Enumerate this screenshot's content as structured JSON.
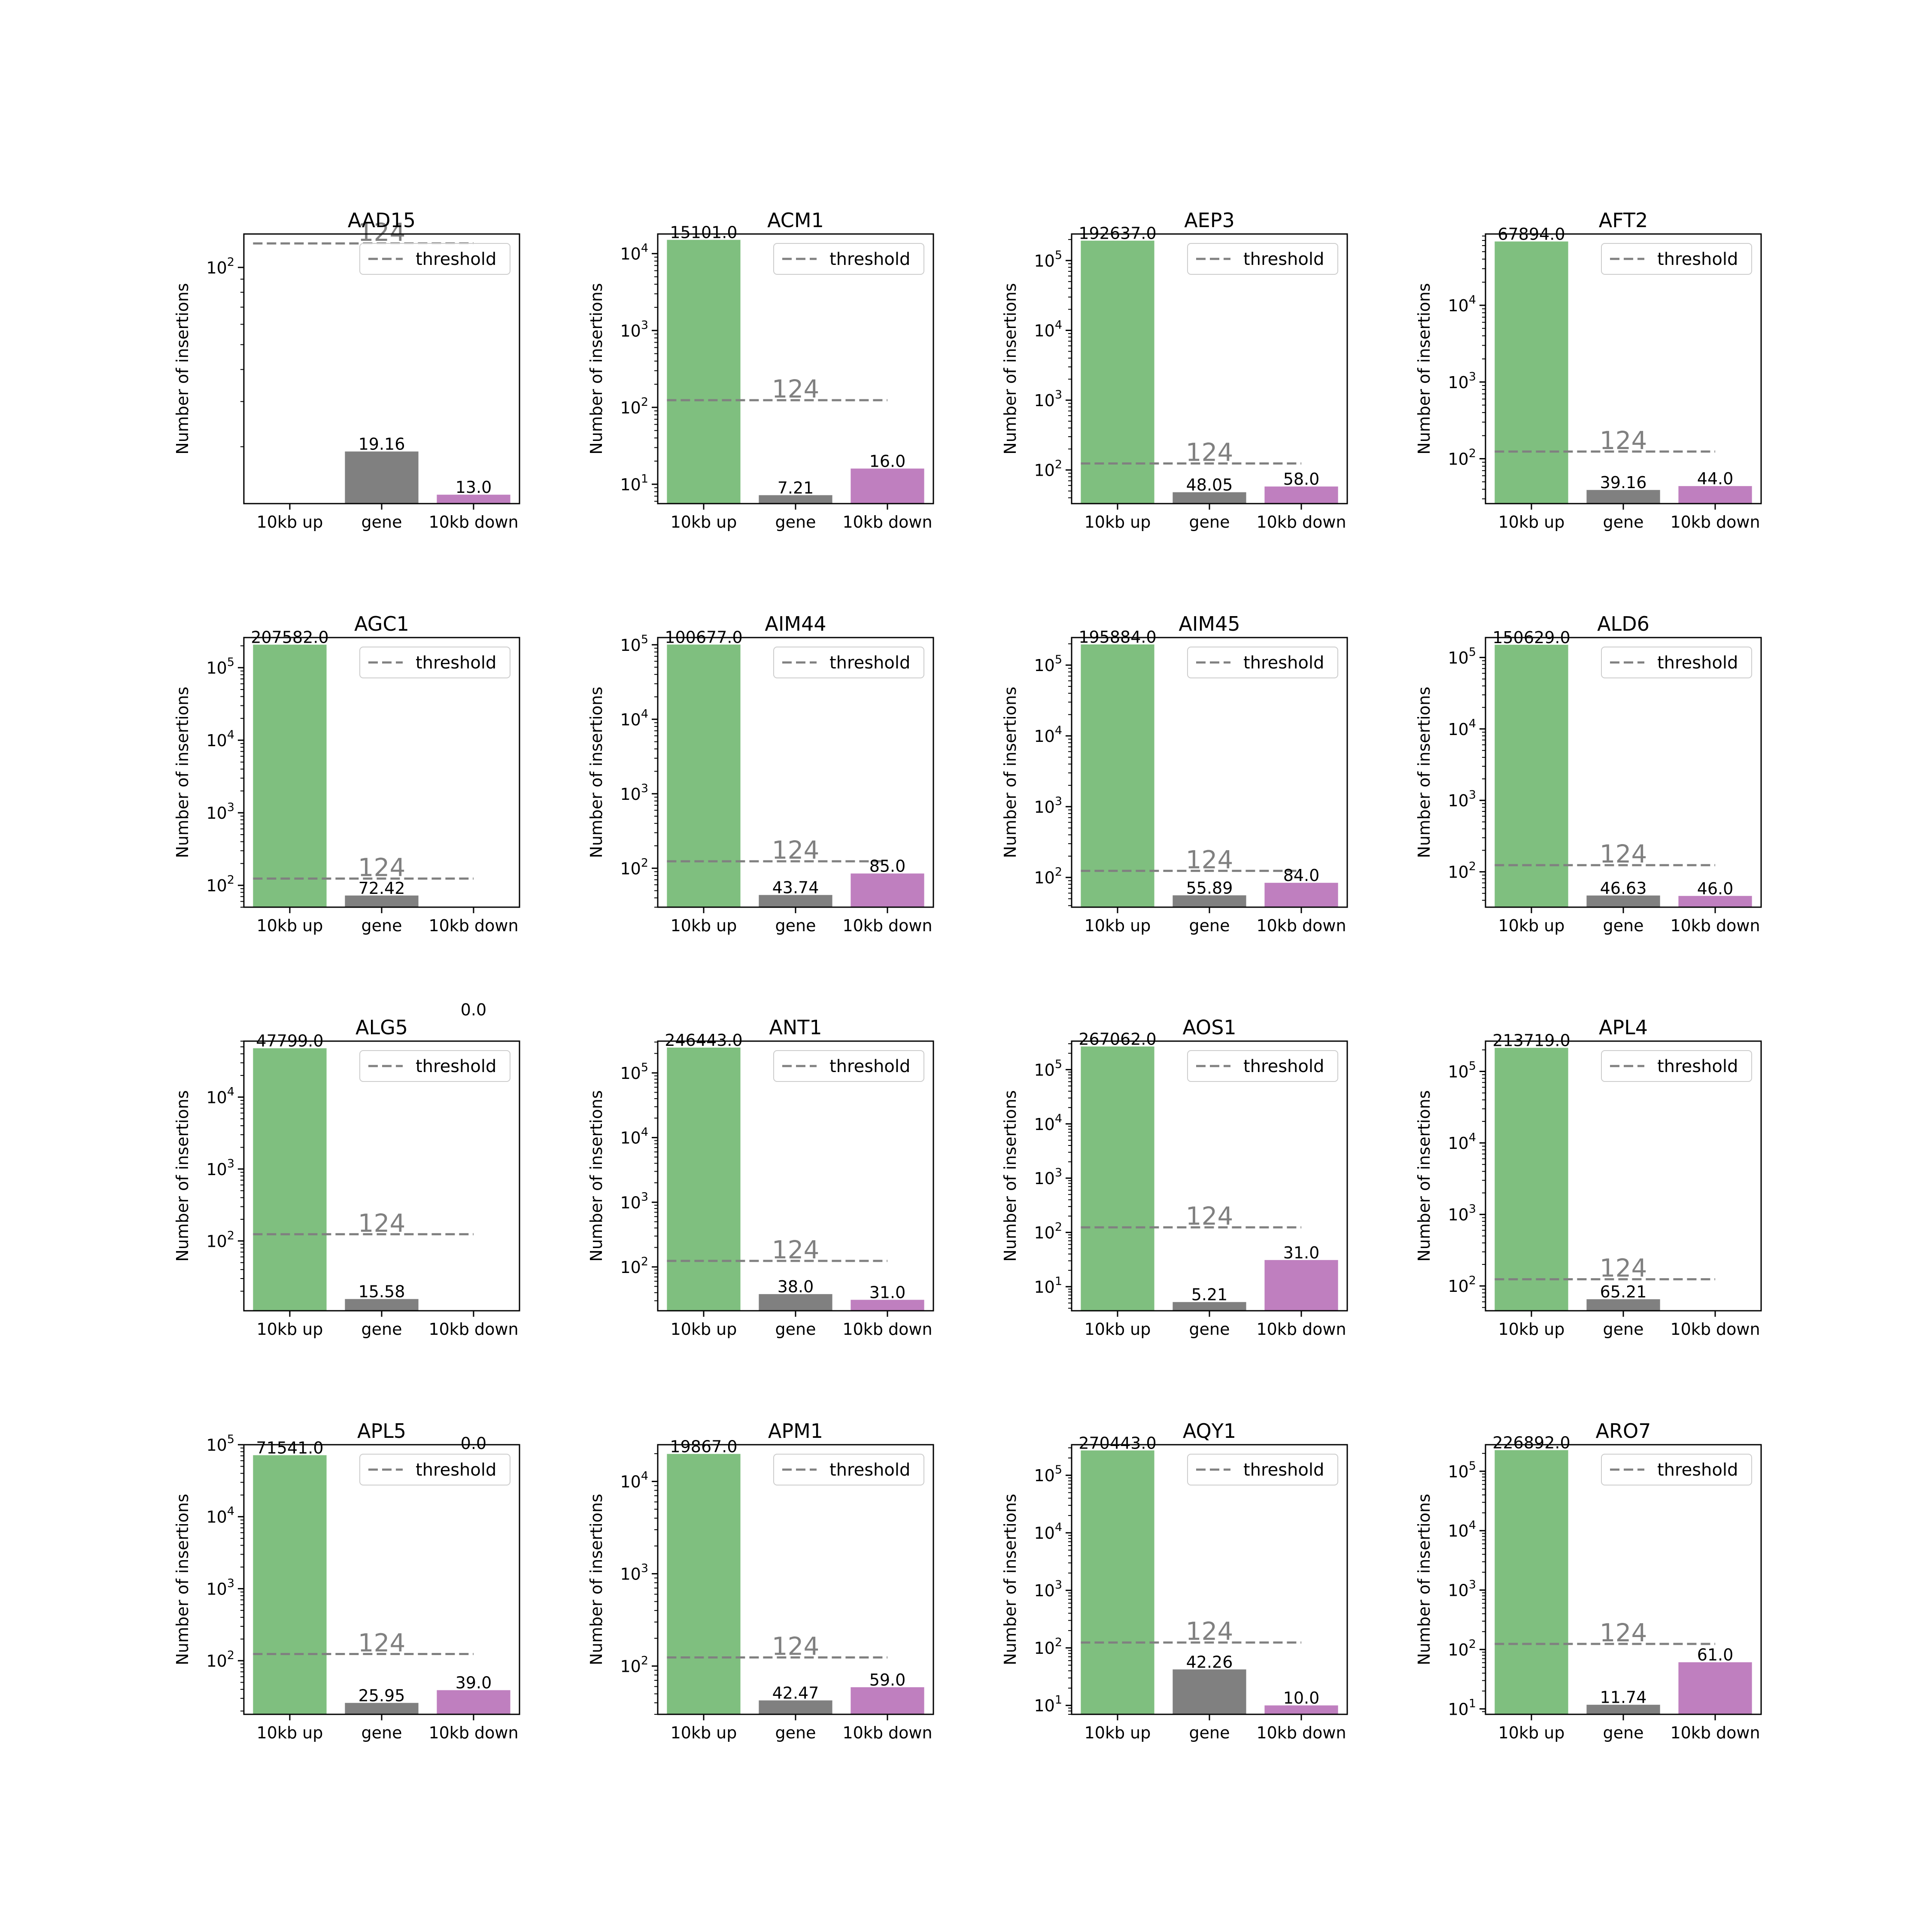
{
  "colors": {
    "up": "#7fbf7f",
    "gene": "#808080",
    "down": "#bf7fbf",
    "threshold": "#808080"
  },
  "chart_data": [
    {
      "type": "bar",
      "title": "AAD15",
      "categories": [
        "10kb up",
        "gene",
        "10kb down"
      ],
      "values": [
        0.0,
        19.16,
        13.0
      ],
      "bar_labels": [
        "",
        "19.16",
        "13.0"
      ],
      "ylabel": "Number of insertions",
      "yscale": "log",
      "ylim": [
        12,
        135
      ],
      "yticks": [
        {
          "base": "10",
          "exp": "2",
          "value": 100
        }
      ],
      "threshold": 124,
      "threshold_label": "124",
      "legend": {
        "entries": [
          "threshold"
        ],
        "position": "upper right"
      }
    },
    {
      "type": "bar",
      "title": "ACM1",
      "categories": [
        "10kb up",
        "gene",
        "10kb down"
      ],
      "values": [
        15101.0,
        7.21,
        16.0
      ],
      "bar_labels": [
        "15101.0",
        "7.21",
        "16.0"
      ],
      "ylabel": "Number of insertions",
      "yscale": "log",
      "ylim": [
        5.6,
        18000
      ],
      "yticks": [
        {
          "base": "10",
          "exp": "1",
          "value": 10
        },
        {
          "base": "10",
          "exp": "2",
          "value": 100
        },
        {
          "base": "10",
          "exp": "3",
          "value": 1000
        },
        {
          "base": "10",
          "exp": "4",
          "value": 10000
        }
      ],
      "threshold": 124,
      "threshold_label": "124",
      "legend": {
        "entries": [
          "threshold"
        ],
        "position": "upper right"
      }
    },
    {
      "type": "bar",
      "title": "AEP3",
      "categories": [
        "10kb up",
        "gene",
        "10kb down"
      ],
      "values": [
        192637.0,
        48.05,
        58.0
      ],
      "bar_labels": [
        "192637.0",
        "48.05",
        "58.0"
      ],
      "ylabel": "Number of insertions",
      "yscale": "log",
      "ylim": [
        33,
        240000
      ],
      "yticks": [
        {
          "base": "10",
          "exp": "2",
          "value": 100
        },
        {
          "base": "10",
          "exp": "3",
          "value": 1000
        },
        {
          "base": "10",
          "exp": "4",
          "value": 10000
        },
        {
          "base": "10",
          "exp": "5",
          "value": 100000
        }
      ],
      "threshold": 124,
      "threshold_label": "124",
      "legend": {
        "entries": [
          "threshold"
        ],
        "position": "upper right"
      }
    },
    {
      "type": "bar",
      "title": "AFT2",
      "categories": [
        "10kb up",
        "gene",
        "10kb down"
      ],
      "values": [
        67894.0,
        39.16,
        44.0
      ],
      "bar_labels": [
        "67894.0",
        "39.16",
        "44.0"
      ],
      "ylabel": "Number of insertions",
      "yscale": "log",
      "ylim": [
        26,
        85000
      ],
      "yticks": [
        {
          "base": "10",
          "exp": "2",
          "value": 100
        },
        {
          "base": "10",
          "exp": "3",
          "value": 1000
        },
        {
          "base": "10",
          "exp": "4",
          "value": 10000
        }
      ],
      "threshold": 124,
      "threshold_label": "124",
      "legend": {
        "entries": [
          "threshold"
        ],
        "position": "upper right"
      }
    },
    {
      "type": "bar",
      "title": "AGC1",
      "categories": [
        "10kb up",
        "gene",
        "10kb down"
      ],
      "values": [
        207582.0,
        72.42,
        0.0
      ],
      "bar_labels": [
        "207582.0",
        "72.42",
        ""
      ],
      "ylabel": "Number of insertions",
      "yscale": "log",
      "ylim": [
        50,
        260000
      ],
      "yticks": [
        {
          "base": "10",
          "exp": "2",
          "value": 100
        },
        {
          "base": "10",
          "exp": "3",
          "value": 1000
        },
        {
          "base": "10",
          "exp": "4",
          "value": 10000
        },
        {
          "base": "10",
          "exp": "5",
          "value": 100000
        }
      ],
      "threshold": 124,
      "threshold_label": "124",
      "legend": {
        "entries": [
          "threshold"
        ],
        "position": "upper right"
      }
    },
    {
      "type": "bar",
      "title": "AIM44",
      "categories": [
        "10kb up",
        "gene",
        "10kb down"
      ],
      "values": [
        100677.0,
        43.74,
        85.0
      ],
      "bar_labels": [
        "100677.0",
        "43.74",
        "85.0"
      ],
      "ylabel": "Number of insertions",
      "yscale": "log",
      "ylim": [
        30,
        125000
      ],
      "yticks": [
        {
          "base": "10",
          "exp": "2",
          "value": 100
        },
        {
          "base": "10",
          "exp": "3",
          "value": 1000
        },
        {
          "base": "10",
          "exp": "4",
          "value": 10000
        },
        {
          "base": "10",
          "exp": "5",
          "value": 100000
        }
      ],
      "threshold": 124,
      "threshold_label": "124",
      "legend": {
        "entries": [
          "threshold"
        ],
        "position": "upper right"
      }
    },
    {
      "type": "bar",
      "title": "AIM45",
      "categories": [
        "10kb up",
        "gene",
        "10kb down"
      ],
      "values": [
        195884.0,
        55.89,
        84.0
      ],
      "bar_labels": [
        "195884.0",
        "55.89",
        "84.0"
      ],
      "ylabel": "Number of insertions",
      "yscale": "log",
      "ylim": [
        38,
        245000
      ],
      "yticks": [
        {
          "base": "10",
          "exp": "2",
          "value": 100
        },
        {
          "base": "10",
          "exp": "3",
          "value": 1000
        },
        {
          "base": "10",
          "exp": "4",
          "value": 10000
        },
        {
          "base": "10",
          "exp": "5",
          "value": 100000
        }
      ],
      "threshold": 124,
      "threshold_label": "124",
      "legend": {
        "entries": [
          "threshold"
        ],
        "position": "upper right"
      }
    },
    {
      "type": "bar",
      "title": "ALD6",
      "categories": [
        "10kb up",
        "gene",
        "10kb down"
      ],
      "values": [
        150629.0,
        46.63,
        46.0
      ],
      "bar_labels": [
        "150629.0",
        "46.63",
        "46.0"
      ],
      "ylabel": "Number of insertions",
      "yscale": "log",
      "ylim": [
        32,
        190000
      ],
      "yticks": [
        {
          "base": "10",
          "exp": "2",
          "value": 100
        },
        {
          "base": "10",
          "exp": "3",
          "value": 1000
        },
        {
          "base": "10",
          "exp": "4",
          "value": 10000
        },
        {
          "base": "10",
          "exp": "5",
          "value": 100000
        }
      ],
      "threshold": 124,
      "threshold_label": "124",
      "legend": {
        "entries": [
          "threshold"
        ],
        "position": "upper right"
      }
    },
    {
      "type": "bar",
      "title": "ALG5",
      "categories": [
        "10kb up",
        "gene",
        "10kb down"
      ],
      "values": [
        47799.0,
        15.58,
        0.0
      ],
      "bar_labels": [
        "47799.0",
        "15.58",
        "0.0"
      ],
      "ylabel": "Number of insertions",
      "yscale": "log",
      "ylim": [
        10.7,
        60000
      ],
      "yticks": [
        {
          "base": "10",
          "exp": "2",
          "value": 100
        },
        {
          "base": "10",
          "exp": "3",
          "value": 1000
        },
        {
          "base": "10",
          "exp": "4",
          "value": 10000
        }
      ],
      "threshold": 124,
      "threshold_label": "124",
      "legend": {
        "entries": [
          "threshold"
        ],
        "position": "upper right"
      }
    },
    {
      "type": "bar",
      "title": "ANT1",
      "categories": [
        "10kb up",
        "gene",
        "10kb down"
      ],
      "values": [
        246443.0,
        38.0,
        31.0
      ],
      "bar_labels": [
        "246443.0",
        "38.0",
        "31.0"
      ],
      "ylabel": "Number of insertions",
      "yscale": "log",
      "ylim": [
        21,
        310000
      ],
      "yticks": [
        {
          "base": "10",
          "exp": "2",
          "value": 100
        },
        {
          "base": "10",
          "exp": "3",
          "value": 1000
        },
        {
          "base": "10",
          "exp": "4",
          "value": 10000
        },
        {
          "base": "10",
          "exp": "5",
          "value": 100000
        }
      ],
      "threshold": 124,
      "threshold_label": "124",
      "legend": {
        "entries": [
          "threshold"
        ],
        "position": "upper right"
      }
    },
    {
      "type": "bar",
      "title": "AOS1",
      "categories": [
        "10kb up",
        "gene",
        "10kb down"
      ],
      "values": [
        267062.0,
        5.21,
        31.0
      ],
      "bar_labels": [
        "267062.0",
        "5.21",
        "31.0"
      ],
      "ylabel": "Number of insertions",
      "yscale": "log",
      "ylim": [
        3.6,
        335000
      ],
      "yticks": [
        {
          "base": "10",
          "exp": "1",
          "value": 10
        },
        {
          "base": "10",
          "exp": "2",
          "value": 100
        },
        {
          "base": "10",
          "exp": "3",
          "value": 1000
        },
        {
          "base": "10",
          "exp": "4",
          "value": 10000
        },
        {
          "base": "10",
          "exp": "5",
          "value": 100000
        }
      ],
      "threshold": 124,
      "threshold_label": "124",
      "legend": {
        "entries": [
          "threshold"
        ],
        "position": "upper right"
      }
    },
    {
      "type": "bar",
      "title": "APL4",
      "categories": [
        "10kb up",
        "gene",
        "10kb down"
      ],
      "values": [
        213719.0,
        65.21,
        0.0
      ],
      "bar_labels": [
        "213719.0",
        "65.21",
        ""
      ],
      "ylabel": "Number of insertions",
      "yscale": "log",
      "ylim": [
        45,
        265000
      ],
      "yticks": [
        {
          "base": "10",
          "exp": "2",
          "value": 100
        },
        {
          "base": "10",
          "exp": "3",
          "value": 1000
        },
        {
          "base": "10",
          "exp": "4",
          "value": 10000
        },
        {
          "base": "10",
          "exp": "5",
          "value": 100000
        }
      ],
      "threshold": 124,
      "threshold_label": "124",
      "legend": {
        "entries": [
          "threshold"
        ],
        "position": "upper right"
      }
    },
    {
      "type": "bar",
      "title": "APL5",
      "categories": [
        "10kb up",
        "gene",
        "10kb down"
      ],
      "values": [
        71541.0,
        25.95,
        39.0
      ],
      "bar_labels": [
        "71541.0",
        "25.95",
        "39.0"
      ],
      "ylabel": "Number of insertions",
      "yscale": "log",
      "ylim": [
        18,
        100000
      ],
      "yticks": [
        {
          "base": "10",
          "exp": "2",
          "value": 100
        },
        {
          "base": "10",
          "exp": "3",
          "value": 1000
        },
        {
          "base": "10",
          "exp": "4",
          "value": 10000
        },
        {
          "base": "10",
          "exp": "5",
          "value": 100000
        }
      ],
      "threshold": 124,
      "threshold_label": "124",
      "extra_label": "0.0",
      "legend": {
        "entries": [
          "threshold"
        ],
        "position": "upper right"
      }
    },
    {
      "type": "bar",
      "title": "APM1",
      "categories": [
        "10kb up",
        "gene",
        "10kb down"
      ],
      "values": [
        19867.0,
        42.47,
        59.0
      ],
      "bar_labels": [
        "19867.0",
        "42.47",
        "59.0"
      ],
      "ylabel": "Number of insertions",
      "yscale": "log",
      "ylim": [
        30,
        25000
      ],
      "yticks": [
        {
          "base": "10",
          "exp": "2",
          "value": 100
        },
        {
          "base": "10",
          "exp": "3",
          "value": 1000
        },
        {
          "base": "10",
          "exp": "4",
          "value": 10000
        }
      ],
      "threshold": 124,
      "threshold_label": "124",
      "legend": {
        "entries": [
          "threshold"
        ],
        "position": "upper right"
      }
    },
    {
      "type": "bar",
      "title": "AQY1",
      "categories": [
        "10kb up",
        "gene",
        "10kb down"
      ],
      "values": [
        270443.0,
        42.26,
        10.0
      ],
      "bar_labels": [
        "270443.0",
        "42.26",
        "10.0"
      ],
      "ylabel": "Number of insertions",
      "yscale": "log",
      "ylim": [
        7,
        340000
      ],
      "yticks": [
        {
          "base": "10",
          "exp": "1",
          "value": 10
        },
        {
          "base": "10",
          "exp": "2",
          "value": 100
        },
        {
          "base": "10",
          "exp": "3",
          "value": 1000
        },
        {
          "base": "10",
          "exp": "4",
          "value": 10000
        },
        {
          "base": "10",
          "exp": "5",
          "value": 100000
        }
      ],
      "threshold": 124,
      "threshold_label": "124",
      "legend": {
        "entries": [
          "threshold"
        ],
        "position": "upper right"
      }
    },
    {
      "type": "bar",
      "title": "ARO7",
      "categories": [
        "10kb up",
        "gene",
        "10kb down"
      ],
      "values": [
        226892.0,
        11.74,
        61.0
      ],
      "bar_labels": [
        "226892.0",
        "11.74",
        "61.0"
      ],
      "ylabel": "Number of insertions",
      "yscale": "log",
      "ylim": [
        8.1,
        280000
      ],
      "yticks": [
        {
          "base": "10",
          "exp": "1",
          "value": 10
        },
        {
          "base": "10",
          "exp": "2",
          "value": 100
        },
        {
          "base": "10",
          "exp": "3",
          "value": 1000
        },
        {
          "base": "10",
          "exp": "4",
          "value": 10000
        },
        {
          "base": "10",
          "exp": "5",
          "value": 100000
        }
      ],
      "threshold": 124,
      "threshold_label": "124",
      "legend": {
        "entries": [
          "threshold"
        ],
        "position": "upper right"
      }
    }
  ]
}
